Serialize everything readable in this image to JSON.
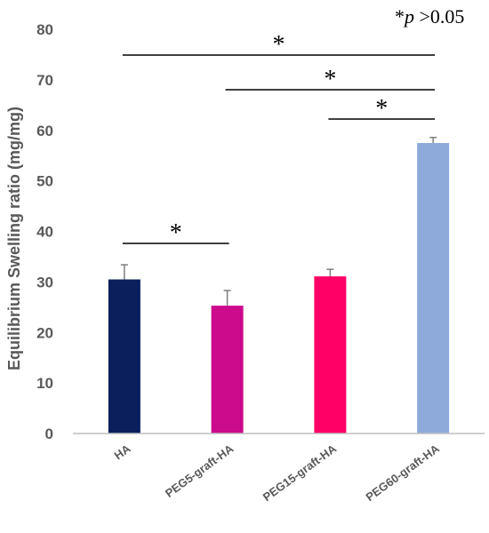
{
  "chart_data": {
    "type": "bar",
    "categories": [
      "HA",
      "PEG5-graft-HA",
      "PEG15-graft-HA",
      "PEG60-graft-HA"
    ],
    "values": [
      30.5,
      25.3,
      31.1,
      57.5
    ],
    "errors": [
      2.9,
      3.0,
      1.4,
      1.1
    ],
    "colors": [
      "#0a1f5c",
      "#cc0a8c",
      "#ff0066",
      "#8eaadb"
    ],
    "ylabel": "Equilibrium Swelling ratio (mg/mg)",
    "ylim": [
      0,
      80
    ],
    "yticks": [
      0,
      10,
      20,
      30,
      40,
      50,
      60,
      70,
      80
    ],
    "grid": false,
    "significance": [
      {
        "from": "HA",
        "to": "PEG60-graft-HA",
        "label": "*"
      },
      {
        "from": "PEG5-graft-HA",
        "to": "PEG60-graft-HA",
        "label": "*"
      },
      {
        "from": "PEG15-graft-HA",
        "to": "PEG60-graft-HA",
        "label": "*"
      },
      {
        "from": "HA",
        "to": "PEG5-graft-HA",
        "label": "*"
      }
    ],
    "annotation": {
      "star": "*",
      "p": "p",
      "rest": " >0.05"
    }
  }
}
